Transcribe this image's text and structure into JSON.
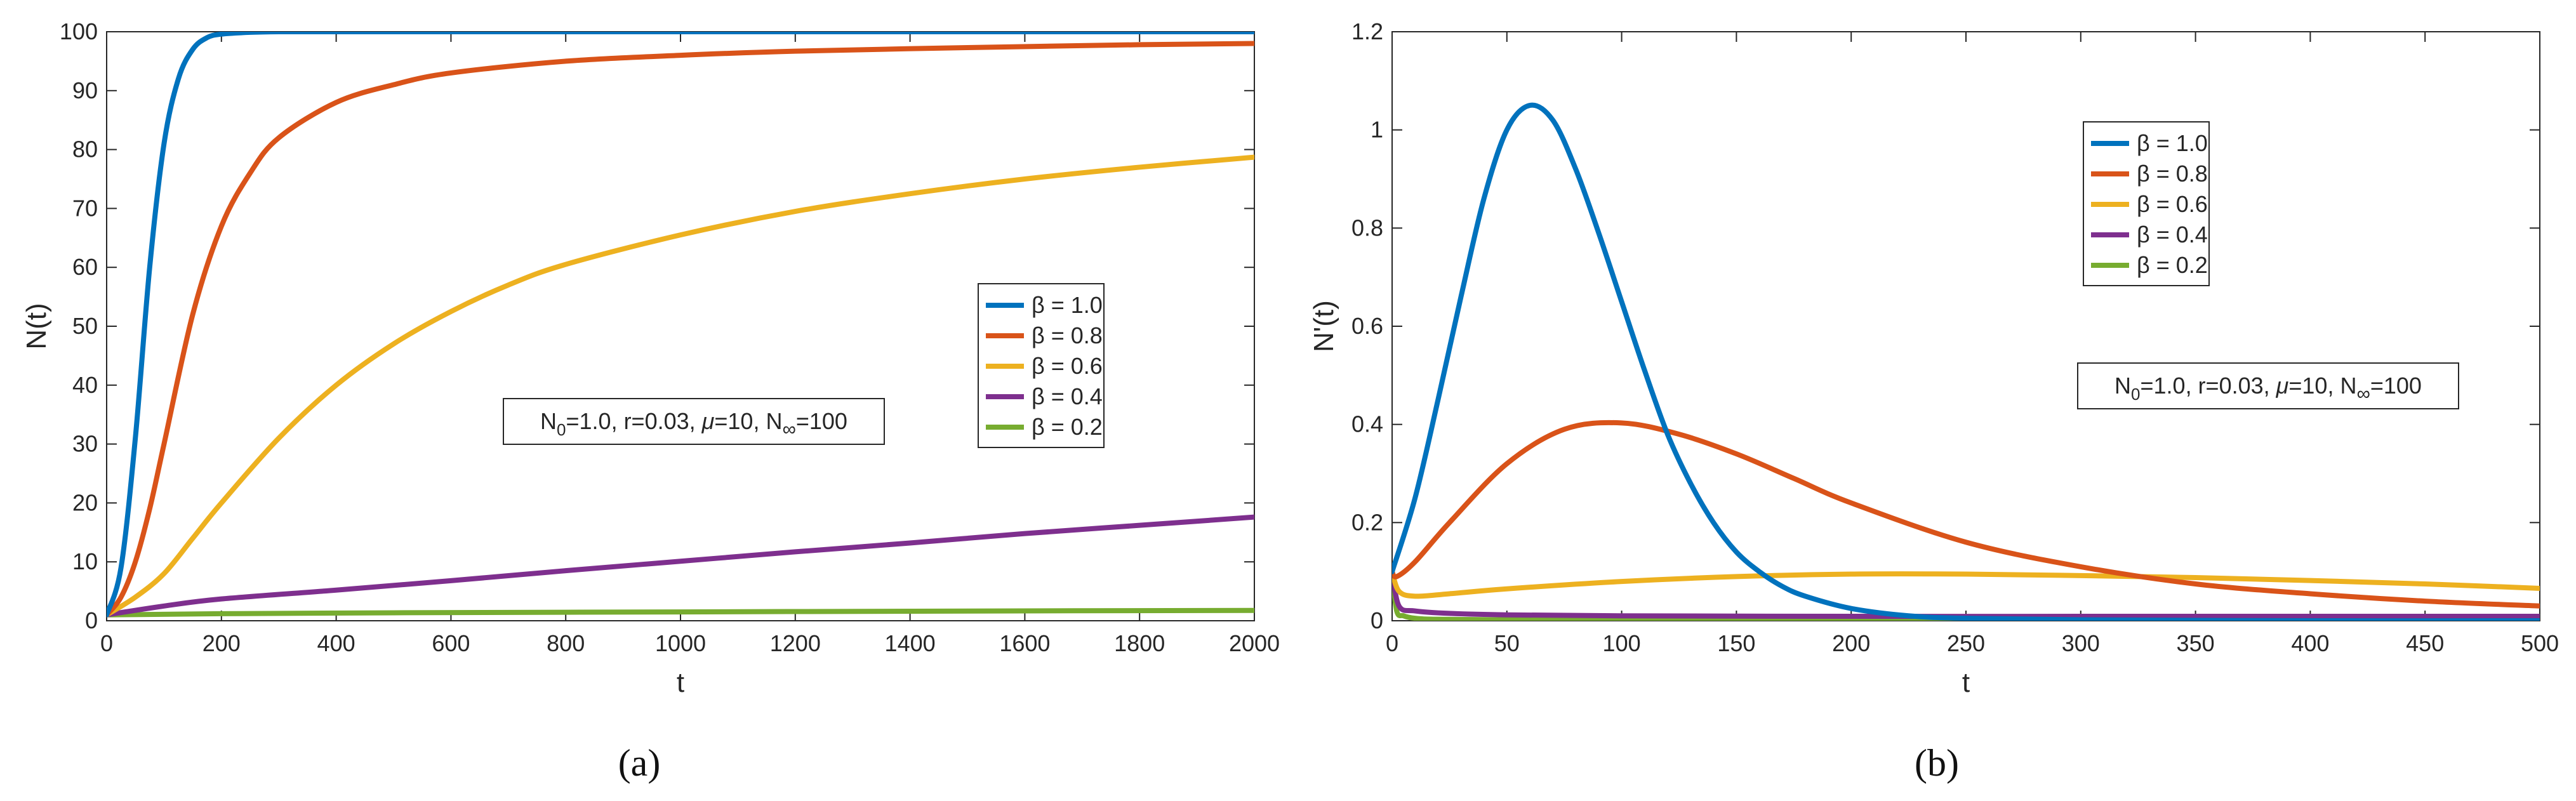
{
  "chart_data": [
    {
      "type": "line",
      "panel": "a",
      "caption": "(a)",
      "title": "",
      "xlabel": "t",
      "ylabel": "N(t)",
      "xlim": [
        0,
        2000
      ],
      "ylim": [
        0,
        100
      ],
      "xticks": [
        0,
        200,
        400,
        600,
        800,
        1000,
        1200,
        1400,
        1600,
        1800,
        2000
      ],
      "yticks": [
        0,
        10,
        20,
        30,
        40,
        50,
        60,
        70,
        80,
        90,
        100
      ],
      "grid": false,
      "legend_position": "center-right",
      "annotation": {
        "prefix": "N",
        "sub0": "0",
        "mid": "=1.0, r=0.03, ",
        "mu": "μ",
        "mid2": "=10, N",
        "subinf": "∞",
        "suffix": "=100"
      },
      "series": [
        {
          "name": "β = 1.0",
          "color": "#0072BD",
          "x": [
            0,
            25,
            50,
            75,
            100,
            125,
            150,
            175,
            200,
            250,
            300,
            400,
            600,
            1000,
            1500,
            2000
          ],
          "y": [
            1,
            9,
            31,
            60,
            81,
            92,
            97,
            99,
            99.6,
            99.9,
            100,
            100,
            100,
            100,
            100,
            100
          ]
        },
        {
          "name": "β = 0.8",
          "color": "#D95319",
          "x": [
            0,
            25,
            50,
            75,
            100,
            150,
            200,
            250,
            300,
            400,
            500,
            600,
            800,
            1000,
            1200,
            1500,
            1800,
            2000
          ],
          "y": [
            1,
            4,
            10,
            19,
            30,
            52,
            67,
            76,
            82,
            88,
            91,
            93,
            95,
            96,
            96.7,
            97.3,
            97.8,
            98
          ]
        },
        {
          "name": "β = 0.6",
          "color": "#EDB120",
          "x": [
            0,
            50,
            100,
            150,
            200,
            300,
            400,
            500,
            600,
            700,
            800,
            1000,
            1200,
            1400,
            1600,
            1800,
            2000
          ],
          "y": [
            1,
            4,
            8,
            14,
            20,
            31,
            40,
            47,
            52.5,
            57,
            60.5,
            65.5,
            69.5,
            72.5,
            75,
            77,
            78.7
          ]
        },
        {
          "name": "β = 0.4",
          "color": "#7E2F8E",
          "x": [
            0,
            100,
            200,
            400,
            600,
            800,
            1000,
            1200,
            1400,
            1600,
            1800,
            2000
          ],
          "y": [
            1,
            2.5,
            3.7,
            5.2,
            6.8,
            8.5,
            10.1,
            11.7,
            13.2,
            14.8,
            16.2,
            17.6
          ]
        },
        {
          "name": "β = 0.2",
          "color": "#77AC30",
          "x": [
            0,
            200,
            500,
            1000,
            1500,
            2000
          ],
          "y": [
            1,
            1.2,
            1.35,
            1.5,
            1.65,
            1.75
          ]
        }
      ]
    },
    {
      "type": "line",
      "panel": "b",
      "caption": "(b)",
      "title": "",
      "xlabel": "t",
      "ylabel": "N'(t)",
      "xlim": [
        0,
        500
      ],
      "ylim": [
        0,
        1.2
      ],
      "xticks": [
        0,
        50,
        100,
        150,
        200,
        250,
        300,
        350,
        400,
        450,
        500
      ],
      "yticks": [
        0,
        0.2,
        0.4,
        0.6,
        0.8,
        1,
        1.2
      ],
      "grid": false,
      "legend_position": "top-center",
      "annotation": {
        "prefix": "N",
        "sub0": "0",
        "mid": "=1.0, r=0.03, ",
        "mu": "μ",
        "mid2": "=10, N",
        "subinf": "∞",
        "suffix": "=100"
      },
      "series": [
        {
          "name": "β = 1.0",
          "color": "#0072BD",
          "x": [
            0,
            10,
            20,
            30,
            40,
            50,
            60,
            70,
            80,
            90,
            100,
            110,
            120,
            130,
            140,
            150,
            160,
            170,
            180,
            200,
            225,
            250,
            300,
            400,
            500
          ],
          "y": [
            0.1,
            0.25,
            0.45,
            0.66,
            0.86,
            1.0,
            1.05,
            1.02,
            0.92,
            0.79,
            0.65,
            0.51,
            0.38,
            0.28,
            0.2,
            0.14,
            0.1,
            0.07,
            0.05,
            0.025,
            0.01,
            0.005,
            0.002,
            0.0,
            0.0
          ]
        },
        {
          "name": "β = 0.8",
          "color": "#D95319",
          "x": [
            0,
            2,
            10,
            25,
            50,
            75,
            100,
            125,
            150,
            175,
            200,
            250,
            300,
            350,
            400,
            450,
            500
          ],
          "y": [
            0.1,
            0.09,
            0.12,
            0.2,
            0.32,
            0.39,
            0.403,
            0.38,
            0.34,
            0.29,
            0.24,
            0.16,
            0.11,
            0.075,
            0.055,
            0.04,
            0.03
          ]
        },
        {
          "name": "β = 0.6",
          "color": "#EDB120",
          "x": [
            0,
            3,
            10,
            25,
            50,
            100,
            150,
            200,
            250,
            300,
            350,
            400,
            450,
            500
          ],
          "y": [
            0.1,
            0.06,
            0.05,
            0.055,
            0.065,
            0.08,
            0.09,
            0.095,
            0.095,
            0.092,
            0.088,
            0.082,
            0.075,
            0.066
          ]
        },
        {
          "name": "β = 0.4",
          "color": "#7E2F8E",
          "x": [
            0,
            3,
            10,
            25,
            50,
            100,
            200,
            300,
            400,
            500
          ],
          "y": [
            0.1,
            0.03,
            0.02,
            0.015,
            0.012,
            0.01,
            0.009,
            0.009,
            0.009,
            0.009
          ]
        },
        {
          "name": "β = 0.2",
          "color": "#77AC30",
          "x": [
            0,
            2,
            5,
            10,
            20,
            50,
            100,
            200,
            300,
            400,
            500
          ],
          "y": [
            0.1,
            0.02,
            0.01,
            0.005,
            0.003,
            0.002,
            0.001,
            0.001,
            0.001,
            0.001,
            0.001
          ]
        }
      ]
    }
  ]
}
